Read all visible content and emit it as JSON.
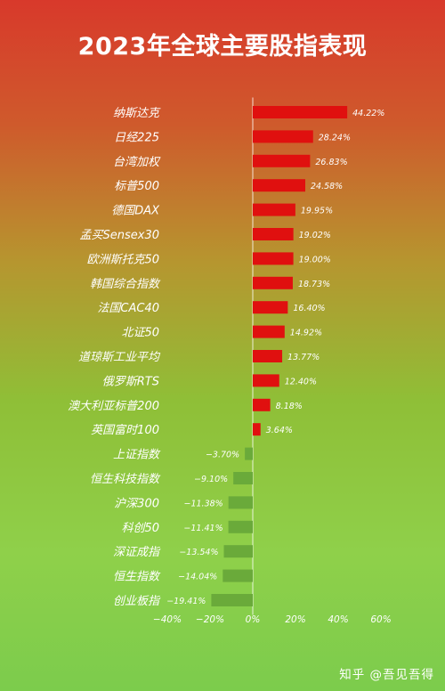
{
  "title": "2023年全球主要股指表现",
  "watermark": "知乎 @吾见吾得",
  "colors": {
    "positive": "#e0100f",
    "negative": "#6aaa3a",
    "text": "#ffffff"
  },
  "chart_data": {
    "type": "bar",
    "orientation": "horizontal",
    "categories": [
      "纳斯达克",
      "日经225",
      "台湾加权",
      "标普500",
      "德国DAX",
      "孟买Sensex30",
      "欧洲斯托克50",
      "韩国综合指数",
      "法国CAC40",
      "北证50",
      "道琼斯工业平均",
      "俄罗斯RTS",
      "澳大利亚标普200",
      "英国富时100",
      "上证指数",
      "恒生科技指数",
      "沪深300",
      "科创50",
      "深证成指",
      "恒生指数",
      "创业板指"
    ],
    "values": [
      44.22,
      28.24,
      26.83,
      24.58,
      19.95,
      19.02,
      19.0,
      18.73,
      16.4,
      14.92,
      13.77,
      12.4,
      8.18,
      3.64,
      -3.7,
      -9.1,
      -11.38,
      -11.41,
      -13.54,
      -14.04,
      -19.41
    ],
    "value_labels": [
      "44.22%",
      "28.24%",
      "26.83%",
      "24.58%",
      "19.95%",
      "19.02%",
      "19.00%",
      "18.73%",
      "16.40%",
      "14.92%",
      "13.77%",
      "12.40%",
      "8.18%",
      "3.64%",
      "−3.70%",
      "−9.10%",
      "−11.38%",
      "−11.41%",
      "−13.54%",
      "−14.04%",
      "−19.41%"
    ],
    "xlim": [
      -40,
      60
    ],
    "xticks": [
      -40,
      -20,
      0,
      20,
      40,
      60
    ],
    "xtick_labels": [
      "−40%",
      "−20%",
      "0%",
      "20%",
      "40%",
      "60%"
    ],
    "grid": false,
    "xlabel": "",
    "ylabel": ""
  }
}
